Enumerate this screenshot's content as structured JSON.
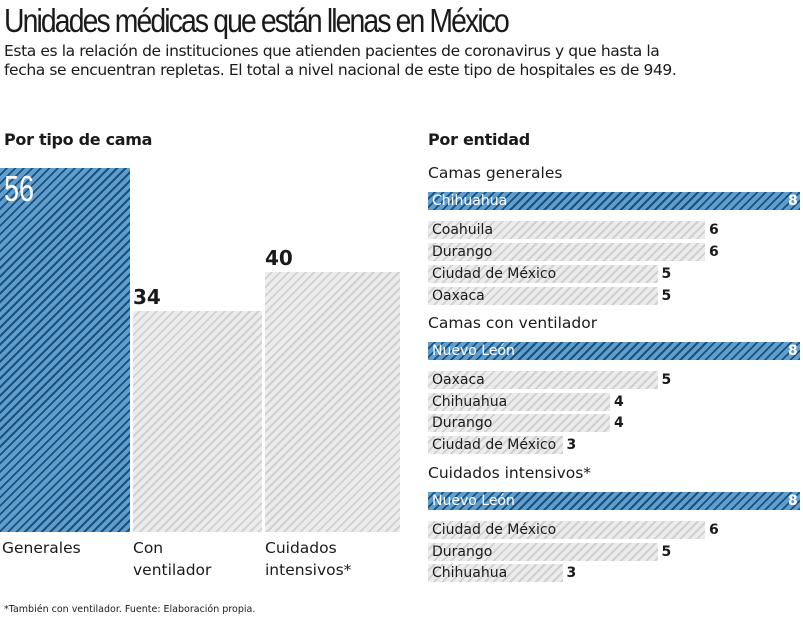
{
  "title": "Unidades médicas que están llenas en México",
  "subtitle": "Esta es la relación de instituciones que atienden pacientes de coronavirus y que hasta la fecha se encuentran repletas. El total a nivel nacional de este tipo de hospitales es de 949.",
  "footnote": "*También con ventilador. Fuente: Elaboración propia.",
  "colors": {
    "highlight": "#5f9fd0",
    "highlight_stripe": "#1e4f78",
    "bar": "#ececec",
    "bar_stripe": "#d0d0d0"
  },
  "chart_data": [
    {
      "type": "bar",
      "title": "Por tipo de cama",
      "categories": [
        "Generales",
        "Con ventilador",
        "Cuidados intensivos*"
      ],
      "category_lines": [
        [
          "Generales"
        ],
        [
          "Con",
          "ventilador"
        ],
        [
          "Cuidados",
          "intensivos*"
        ]
      ],
      "values": [
        56,
        34,
        40
      ],
      "highlight_index": 0
    },
    {
      "type": "bar",
      "orientation": "horizontal",
      "title": "Por entidad",
      "groups": [
        {
          "name": "Camas generales",
          "categories": [
            "Chihuahua",
            "Coahuila",
            "Durango",
            "Ciudad de México",
            "Oaxaca"
          ],
          "values": [
            8,
            6,
            6,
            5,
            5
          ]
        },
        {
          "name": "Camas con ventilador",
          "categories": [
            "Nuevo León",
            "Oaxaca",
            "Chihuahua",
            "Durango",
            "Ciudad de México"
          ],
          "values": [
            8,
            5,
            4,
            4,
            3
          ]
        },
        {
          "name": "Cuidados intensivos*",
          "categories": [
            "Nuevo León",
            "Ciudad de México",
            "Durango",
            "Chihuahua"
          ],
          "values": [
            8,
            6,
            5,
            3
          ]
        }
      ]
    }
  ]
}
